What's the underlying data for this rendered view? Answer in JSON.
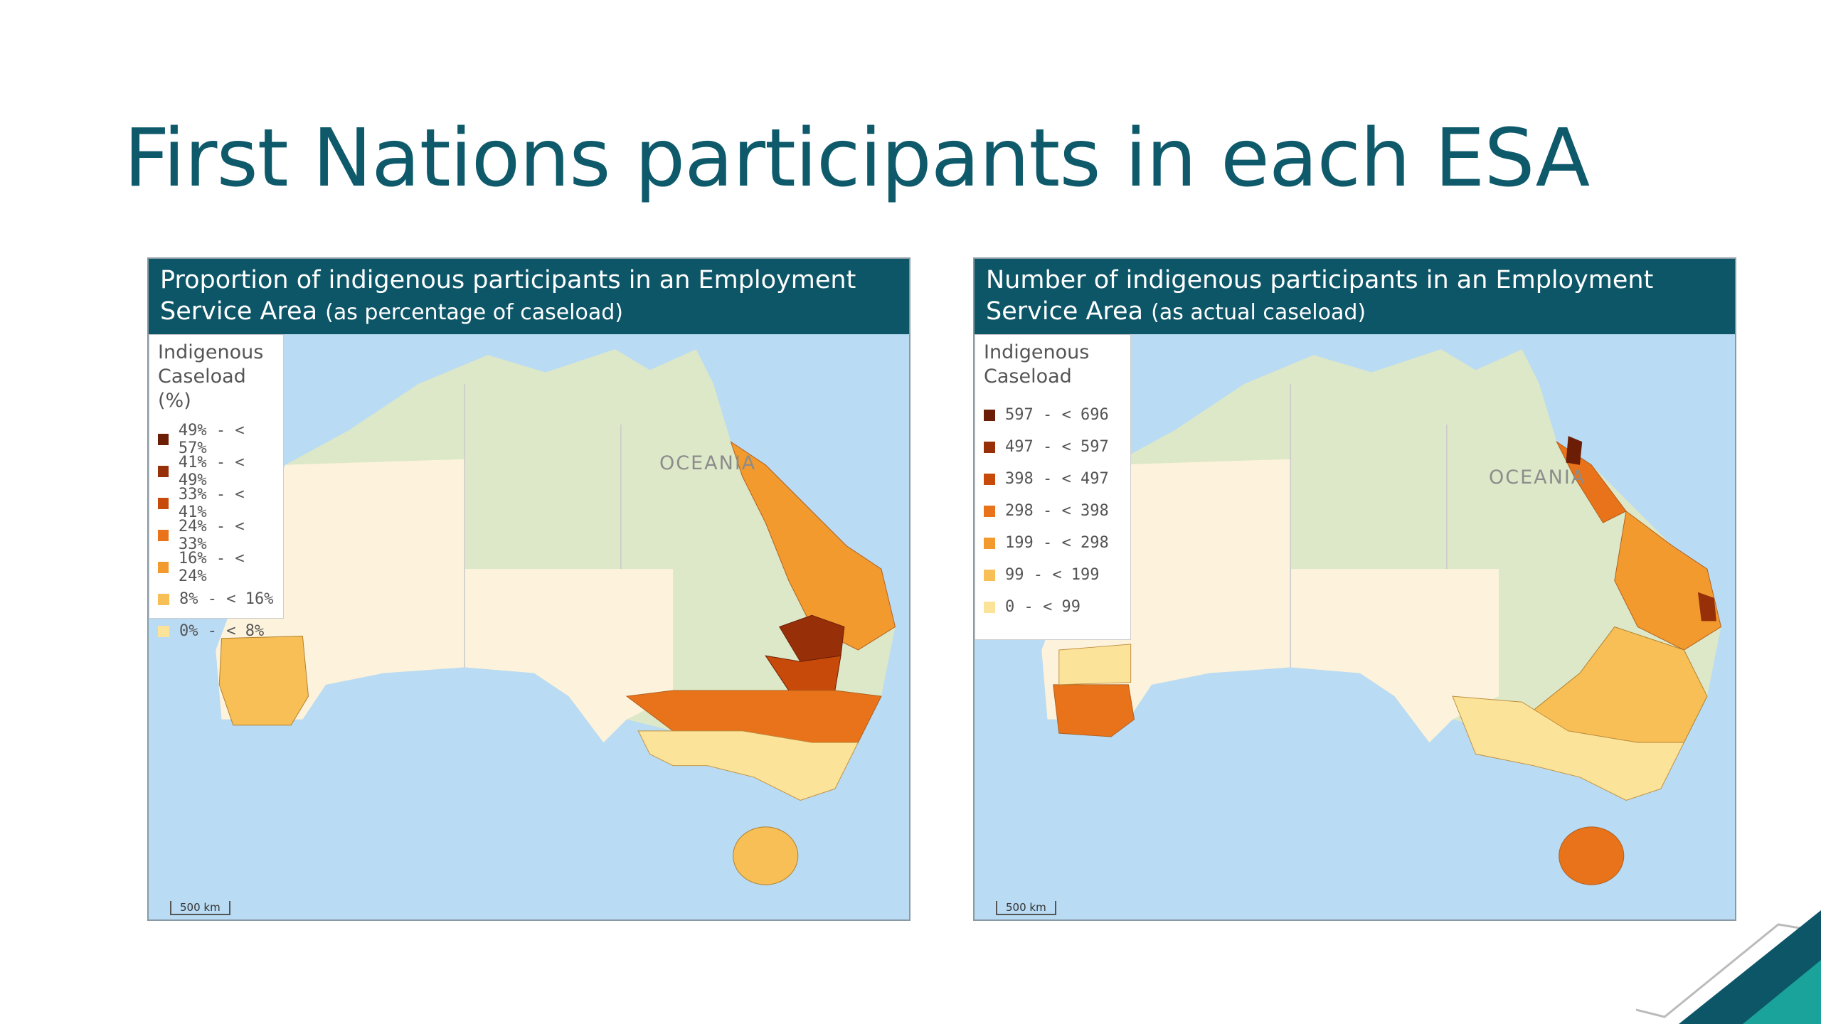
{
  "title": "First Nations participants in each ESA",
  "panels": [
    {
      "title": "Proportion of indigenous participants in an Employment Service Area",
      "subtitle": "(as percentage of caseload)",
      "map_label": "OCEANIA",
      "scale": "500 km",
      "legend": {
        "title": "Indigenous Caseload (%)",
        "items": [
          {
            "label": "49% - < 57%",
            "color": "#6b1e05"
          },
          {
            "label": "41% - < 49%",
            "color": "#973008"
          },
          {
            "label": "33% - < 41%",
            "color": "#c84a0a"
          },
          {
            "label": "24% - < 33%",
            "color": "#e8731a"
          },
          {
            "label": "16% - < 24%",
            "color": "#f29a2e"
          },
          {
            "label": "8% - < 16%",
            "color": "#f7bf55"
          },
          {
            "label": "0% - < 8%",
            "color": "#fbe39a"
          }
        ]
      }
    },
    {
      "title": "Number of indigenous participants in an Employment Service Area",
      "subtitle": "(as actual caseload)",
      "map_label": "OCEANIA",
      "scale": "500 km",
      "legend": {
        "title": "Indigenous Caseload",
        "items": [
          {
            "label": "597 - < 696",
            "color": "#6b1e05"
          },
          {
            "label": "497 - < 597",
            "color": "#973008"
          },
          {
            "label": "398 - < 497",
            "color": "#c84a0a"
          },
          {
            "label": "298 - < 398",
            "color": "#e8731a"
          },
          {
            "label": "199 - < 298",
            "color": "#f29a2e"
          },
          {
            "label": "99 - < 199",
            "color": "#f7bf55"
          },
          {
            "label": "0 - < 99",
            "color": "#fbe39a"
          }
        ]
      }
    }
  ]
}
